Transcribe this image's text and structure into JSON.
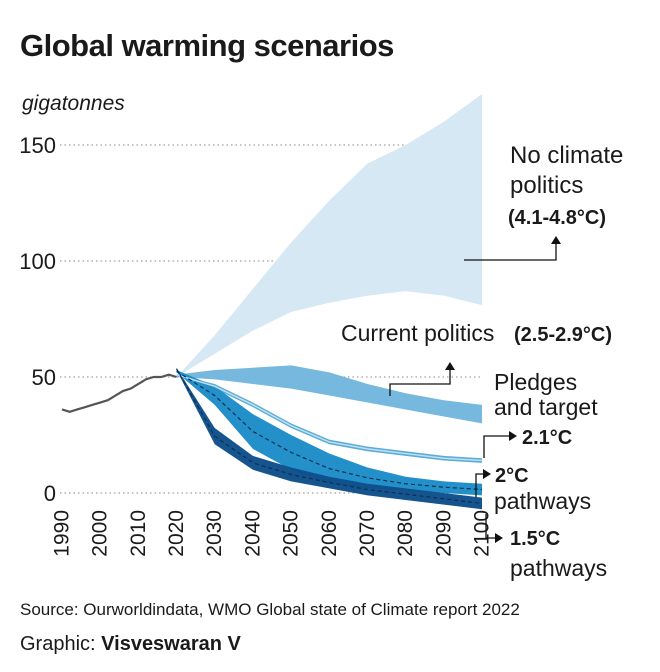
{
  "title": "Global warming scenarios",
  "unit_label": "gigatonnes",
  "source": "Source: Ourworldindata, WMO Global state of Climate report 2022",
  "credit_prefix": "Graphic:",
  "credit_name": "Visveswaran V",
  "colors": {
    "history": "#555555",
    "no_policy": "#d7e8f5",
    "current": "#72b6dd",
    "pledges": "#56a8d6",
    "two_c": "#1c8cc8",
    "one_five": "#0e4e8a",
    "axis_text": "#1a1a1a",
    "grid": "#888888"
  },
  "chart_data": {
    "type": "area",
    "title": "Global warming scenarios",
    "ylabel": "gigatonnes",
    "xlim": [
      1990,
      2100
    ],
    "ylim": [
      -10,
      165
    ],
    "x_ticks": [
      1990,
      2000,
      2010,
      2020,
      2030,
      2040,
      2050,
      2060,
      2070,
      2080,
      2090,
      2100
    ],
    "y_ticks": [
      0,
      50,
      100,
      150
    ],
    "grid": "horizontal dotted",
    "history": {
      "x": [
        1990,
        1992,
        1994,
        1996,
        1998,
        2000,
        2002,
        2004,
        2006,
        2008,
        2010,
        2012,
        2014,
        2016,
        2018,
        2020
      ],
      "y": [
        36,
        35,
        36,
        37,
        38,
        39,
        40,
        42,
        44,
        45,
        47,
        49,
        50,
        50,
        51,
        50
      ]
    },
    "series": [
      {
        "name": "No climate politics",
        "label": "(4.1-4.8°C)",
        "x": [
          2020,
          2030,
          2040,
          2050,
          2060,
          2070,
          2080,
          2090,
          2100
        ],
        "lower": [
          50,
          60,
          70,
          78,
          82,
          85,
          87,
          85,
          81
        ],
        "upper": [
          50,
          68,
          88,
          108,
          126,
          142,
          150,
          160,
          172
        ]
      },
      {
        "name": "Current politics",
        "label": "(2.5-2.9°C)",
        "x": [
          2020,
          2030,
          2040,
          2050,
          2060,
          2070,
          2080,
          2090,
          2100
        ],
        "lower": [
          50,
          49,
          47,
          45,
          42,
          39,
          36,
          33,
          30
        ],
        "upper": [
          51,
          53,
          54,
          55,
          52,
          47,
          43,
          40,
          38
        ]
      },
      {
        "name": "Pledges and target",
        "label": "2.1°C",
        "x": [
          2020,
          2030,
          2040,
          2050,
          2060,
          2070,
          2080,
          2090,
          2100
        ],
        "lower": [
          51,
          45,
          37,
          28,
          21,
          18,
          16,
          14,
          13
        ],
        "upper": [
          51,
          47,
          39,
          30,
          23,
          20,
          18,
          16,
          15
        ]
      },
      {
        "name": "2°C pathways",
        "label": "2°C",
        "x": [
          2020,
          2030,
          2040,
          2050,
          2060,
          2070,
          2080,
          2090,
          2100
        ],
        "lower": [
          52,
          38,
          19,
          10,
          4,
          2,
          1,
          0,
          -1
        ],
        "upper": [
          53,
          46,
          34,
          25,
          17,
          11,
          7,
          5,
          4
        ]
      },
      {
        "name": "1.5°C pathways",
        "label": "1.5°C",
        "x": [
          2020,
          2030,
          2040,
          2050,
          2060,
          2070,
          2080,
          2090,
          2100
        ],
        "lower": [
          53,
          21,
          10,
          5,
          2,
          -1,
          -3,
          -5,
          -7
        ],
        "upper": [
          54,
          28,
          16,
          11,
          7,
          4,
          2,
          0,
          -2
        ]
      }
    ],
    "annotations": [
      {
        "lines": [
          "No climate",
          "politics"
        ],
        "bold": "(4.1-4.8°C)"
      },
      {
        "lines": [
          "Current politics"
        ],
        "bold": "(2.5-2.9°C)"
      },
      {
        "lines": [
          "Pledges",
          "and target"
        ],
        "bold": "2.1°C"
      },
      {
        "lines": [
          "pathways"
        ],
        "bold": "2°C"
      },
      {
        "lines": [
          "pathways"
        ],
        "bold": "1.5°C"
      }
    ]
  }
}
